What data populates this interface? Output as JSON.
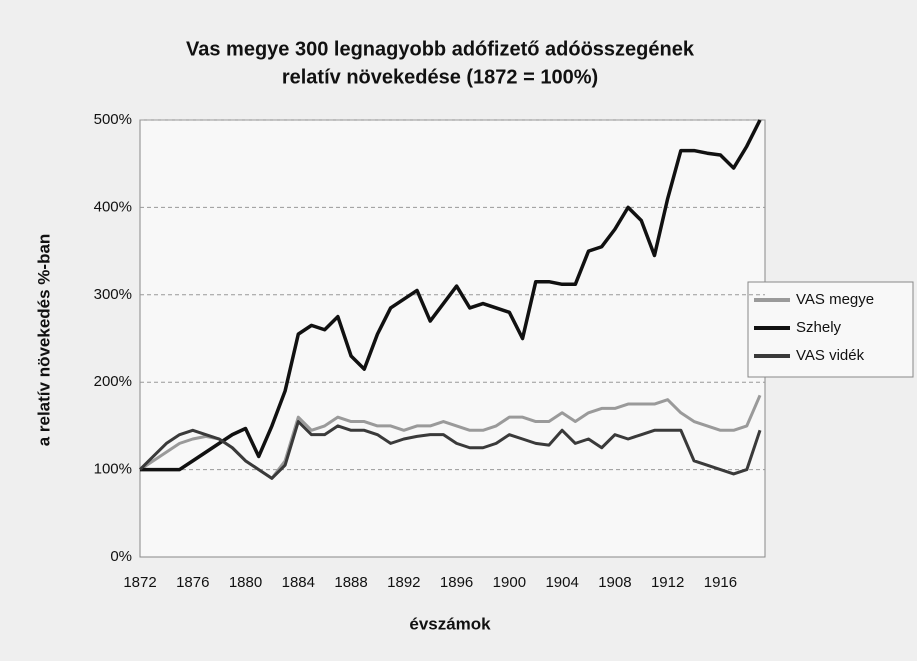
{
  "chart_data": {
    "type": "line",
    "title_lines": [
      "Vas megye 300 legnagyobb adófizető adóösszegének",
      "relatív növekedése (1872 = 100%)"
    ],
    "y_axis_label": "a relatív növekedés %-ban",
    "x_axis_label": "évszámok",
    "categories": [
      "1872",
      null,
      null,
      null,
      "1876",
      null,
      null,
      null,
      "1880",
      null,
      null,
      null,
      "1884",
      null,
      null,
      null,
      "1888",
      null,
      null,
      null,
      "1892",
      null,
      null,
      null,
      "1896",
      null,
      null,
      null,
      "1900",
      null,
      null,
      null,
      "1904",
      null,
      null,
      null,
      "1908",
      null,
      null,
      null,
      "1912",
      null,
      null,
      null,
      "1916",
      null,
      null,
      null
    ],
    "series": [
      {
        "name": "VAS megye",
        "color": "#9a9a9a",
        "values": [
          100,
          110,
          120,
          130,
          135,
          138,
          135,
          125,
          110,
          100,
          90,
          110,
          160,
          145,
          150,
          160,
          155,
          155,
          150,
          150,
          145,
          150,
          150,
          155,
          150,
          145,
          145,
          150,
          160,
          160,
          155,
          155,
          165,
          155,
          165,
          170,
          170,
          175,
          175,
          175,
          180,
          165,
          155,
          150,
          145,
          145,
          150,
          185
        ]
      },
      {
        "name": "Szhely",
        "color": "#111111",
        "values": [
          100,
          100,
          100,
          100,
          110,
          120,
          130,
          140,
          147,
          115,
          150,
          190,
          255,
          265,
          260,
          275,
          230,
          215,
          255,
          285,
          295,
          305,
          270,
          290,
          310,
          285,
          290,
          285,
          280,
          250,
          315,
          315,
          312,
          312,
          350,
          355,
          375,
          400,
          385,
          345,
          410,
          465,
          465,
          462,
          460,
          445,
          470,
          500
        ]
      },
      {
        "name": "VAS vidék",
        "color": "#3a3a3a",
        "values": [
          100,
          115,
          130,
          140,
          145,
          140,
          135,
          125,
          110,
          100,
          90,
          105,
          155,
          140,
          140,
          150,
          145,
          145,
          140,
          130,
          135,
          138,
          140,
          140,
          130,
          125,
          125,
          130,
          140,
          135,
          130,
          128,
          145,
          130,
          135,
          125,
          140,
          135,
          140,
          145,
          145,
          145,
          110,
          105,
          100,
          95,
          100,
          145
        ]
      }
    ],
    "ylim": [
      0,
      500
    ],
    "yticks": [
      {
        "value": 0,
        "label": "0%"
      },
      {
        "value": 100,
        "label": "100%"
      },
      {
        "value": 200,
        "label": "200%"
      },
      {
        "value": 300,
        "label": "300%"
      },
      {
        "value": 400,
        "label": "400%"
      },
      {
        "value": 500,
        "label": "500%"
      }
    ],
    "grid": true,
    "legend": "right"
  }
}
